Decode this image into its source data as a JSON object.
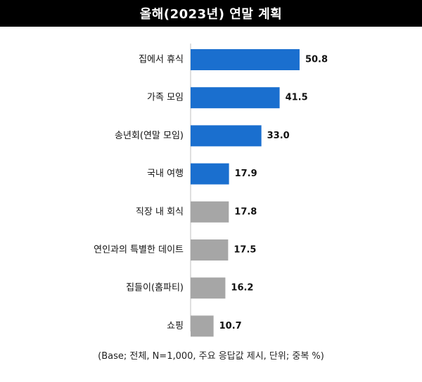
{
  "chart_data": {
    "type": "bar",
    "orientation": "horizontal",
    "title": "올해(2023년) 연말 계획",
    "categories": [
      "집에서 휴식",
      "가족 모임",
      "송년회(연말 모임)",
      "국내 여행",
      "직장 내 회식",
      "연인과의 특별한 데이트",
      "집들이(홈파티)",
      "쇼핑"
    ],
    "values": [
      50.8,
      41.5,
      33.0,
      17.9,
      17.8,
      17.5,
      16.2,
      10.7
    ],
    "value_labels": [
      "50.8",
      "41.5",
      "33.0",
      "17.9",
      "17.8",
      "17.5",
      "16.2",
      "10.7"
    ],
    "highlight_count": 4,
    "colors": {
      "highlight": "#1a6fcf",
      "normal": "#a6a6a6"
    },
    "xlabel": "",
    "ylabel": "",
    "grid": false,
    "footnote": "(Base; 전체, N=1,000, 주요 응답값 제시, 단위; 중복 %)"
  }
}
